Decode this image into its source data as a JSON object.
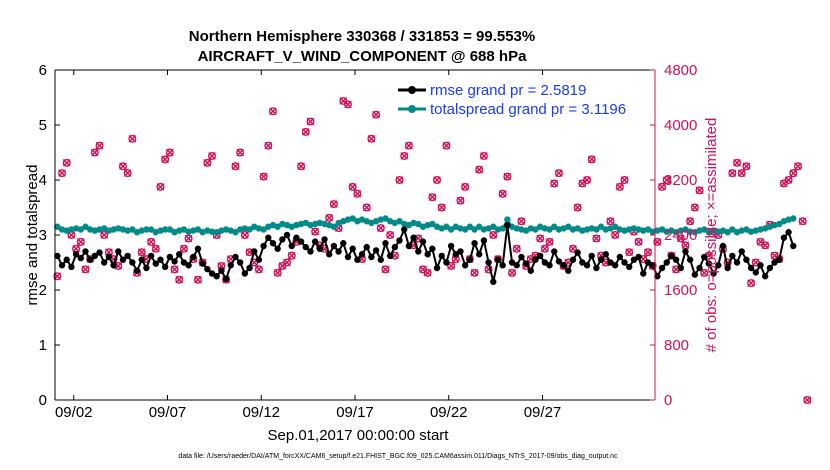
{
  "title_line1": "Northern Hemisphere 330368 / 331853 = 99.553%",
  "title_line2": "AIRCRAFT_V_WIND_COMPONENT @ 688 hPa",
  "footer": "data file: /Users/raeder/DAI/ATM_forcXX/CAM6_setup/f.e21.FHIST_BGC.f09_025.CAM6assim.011/Diags_NTrS_2017-09/obs_diag_output.nc",
  "colors": {
    "rmse": "#000000",
    "spread": "#008a8a",
    "obs": "#d2105a",
    "legend_text": "#1a3cf5"
  },
  "chart_data": {
    "type": "line",
    "xlabel": "Sep.01,2017 00:00:00 start",
    "ylabel_left": "rmse and totalspread",
    "ylabel_right": "# of obs: o=possible; ×=assimilated",
    "xlim": [
      0,
      32
    ],
    "ylim": [
      0,
      6
    ],
    "ylim_right": [
      0,
      4800
    ],
    "x_ticks": [
      1,
      6,
      11,
      16,
      21,
      26
    ],
    "x_tick_labels": [
      "09/02",
      "09/07",
      "09/12",
      "09/17",
      "09/22",
      "09/27"
    ],
    "y_ticks": [
      0,
      1,
      2,
      3,
      4,
      5,
      6
    ],
    "y_tick_labels": [
      "0",
      "1",
      "2",
      "3",
      "4",
      "5",
      "6"
    ],
    "y_right_ticks": [
      0,
      800,
      1600,
      2400,
      3200,
      4000,
      4800
    ],
    "y_right_tick_labels": [
      "0",
      "800",
      "1600",
      "2400",
      "3200",
      "4000",
      "4800"
    ],
    "legend": [
      "rmse grand pr = 2.5819",
      "totalspread grand pr = 3.1196"
    ],
    "time_step_days": 0.25,
    "series": [
      {
        "name": "rmse",
        "axis": "left",
        "values": [
          2.62,
          2.45,
          2.55,
          2.42,
          2.65,
          2.58,
          2.7,
          2.55,
          2.62,
          2.68,
          2.5,
          2.6,
          2.45,
          2.7,
          2.55,
          2.62,
          2.5,
          2.35,
          2.55,
          2.4,
          2.62,
          2.48,
          2.55,
          2.42,
          2.6,
          2.52,
          2.65,
          2.5,
          2.45,
          2.6,
          2.75,
          2.48,
          2.38,
          2.3,
          2.25,
          2.35,
          2.2,
          2.45,
          2.6,
          2.5,
          2.3,
          2.4,
          2.7,
          2.55,
          2.8,
          2.95,
          2.85,
          2.75,
          2.92,
          3.0,
          2.8,
          2.95,
          2.88,
          2.78,
          2.7,
          2.88,
          2.75,
          2.92,
          2.65,
          2.8,
          2.7,
          2.85,
          2.6,
          2.75,
          2.55,
          2.65,
          2.78,
          2.6,
          2.72,
          2.55,
          2.85,
          2.62,
          2.78,
          2.9,
          3.1,
          2.8,
          2.95,
          2.7,
          2.88,
          2.65,
          2.75,
          2.4,
          2.62,
          2.5,
          2.8,
          2.65,
          2.7,
          2.45,
          2.55,
          2.85,
          2.65,
          2.9,
          2.5,
          2.15,
          2.55,
          2.45,
          3.18,
          2.5,
          2.45,
          2.6,
          2.48,
          2.35,
          2.55,
          2.62,
          2.5,
          2.45,
          2.7,
          2.52,
          2.45,
          2.35,
          2.55,
          2.68,
          2.5,
          2.45,
          2.62,
          2.4,
          2.55,
          2.65,
          2.5,
          2.45,
          2.6,
          2.5,
          2.42,
          2.55,
          2.6,
          2.3,
          2.5,
          2.45,
          2.25,
          2.4,
          2.5,
          2.62,
          2.55,
          2.4,
          2.7,
          2.55,
          2.28,
          2.4,
          2.6,
          2.48,
          2.3,
          2.45,
          2.8,
          2.4,
          2.62,
          2.5,
          2.7,
          2.55,
          2.4,
          2.32,
          2.45,
          2.25,
          2.4,
          2.5,
          2.55,
          2.95,
          3.05,
          2.8
        ]
      },
      {
        "name": "totalspread",
        "axis": "left",
        "values": [
          3.15,
          3.1,
          3.08,
          3.1,
          3.12,
          3.1,
          3.15,
          3.1,
          3.08,
          3.1,
          3.12,
          3.08,
          3.1,
          3.12,
          3.1,
          3.08,
          3.1,
          3.05,
          3.08,
          3.1,
          3.1,
          3.05,
          3.08,
          3.1,
          3.1,
          3.05,
          3.08,
          3.1,
          3.06,
          3.08,
          3.1,
          3.05,
          3.08,
          3.06,
          3.05,
          3.08,
          3.1,
          3.08,
          3.05,
          3.1,
          3.12,
          3.1,
          3.15,
          3.12,
          3.1,
          3.15,
          3.18,
          3.15,
          3.2,
          3.18,
          3.15,
          3.18,
          3.2,
          3.22,
          3.18,
          3.2,
          3.22,
          3.2,
          3.18,
          3.15,
          3.22,
          3.25,
          3.28,
          3.3,
          3.25,
          3.28,
          3.25,
          3.22,
          3.25,
          3.28,
          3.3,
          3.25,
          3.22,
          3.25,
          3.2,
          3.18,
          3.22,
          3.2,
          3.15,
          3.18,
          3.2,
          3.15,
          3.12,
          3.15,
          3.1,
          3.15,
          3.12,
          3.1,
          3.15,
          3.1,
          3.15,
          3.1,
          3.12,
          3.15,
          3.1,
          3.12,
          3.28,
          3.15,
          3.12,
          3.1,
          3.08,
          3.12,
          3.1,
          3.15,
          3.12,
          3.1,
          3.15,
          3.1,
          3.12,
          3.15,
          3.1,
          3.12,
          3.08,
          3.1,
          3.12,
          3.1,
          3.15,
          3.1,
          3.12,
          3.15,
          3.1,
          3.08,
          3.1,
          3.12,
          3.1,
          3.08,
          3.1,
          3.06,
          3.08,
          3.1,
          3.06,
          3.08,
          3.05,
          3.08,
          3.1,
          3.06,
          3.05,
          3.08,
          3.1,
          3.05,
          3.08,
          3.06,
          3.08,
          3.05,
          3.1,
          3.05,
          3.08,
          3.1,
          3.06,
          3.08,
          3.1,
          3.12,
          3.15,
          3.18,
          3.2,
          3.25,
          3.28,
          3.3
        ]
      },
      {
        "name": "obs_count",
        "axis": "right",
        "values": [
          1800,
          3300,
          3450,
          2400,
          2200,
          2300,
          1900,
          2050,
          3600,
          3700,
          2400,
          2150,
          2050,
          1950,
          3400,
          3300,
          3800,
          1850,
          2150,
          2050,
          2300,
          2200,
          3100,
          3500,
          3600,
          1900,
          1750,
          2200,
          2350,
          2050,
          1750,
          2000,
          3450,
          3550,
          2400,
          1950,
          1750,
          2050,
          3400,
          3600,
          2400,
          2150,
          2000,
          1900,
          3250,
          3700,
          4200,
          1850,
          1950,
          2000,
          2100,
          2300,
          3400,
          3900,
          4050,
          2450,
          2250,
          2200,
          2650,
          2850,
          2500,
          4350,
          4300,
          3100,
          3000,
          2050,
          2800,
          3800,
          4150,
          2500,
          1900,
          2400,
          2100,
          3200,
          3550,
          3700,
          2250,
          2350,
          1900,
          1850,
          2950,
          3200,
          2800,
          3700,
          1950,
          2050,
          2900,
          3100,
          2050,
          1850,
          3350,
          3550,
          1900,
          2400,
          2050,
          3000,
          3250,
          1850,
          2200,
          2600,
          1950,
          2050,
          2100,
          2350,
          2200,
          2300,
          3150,
          3300,
          1950,
          2000,
          2200,
          2800,
          3150,
          3200,
          3500,
          2350,
          2100,
          2000,
          2600,
          2400,
          3100,
          3200,
          2150,
          2450,
          2300,
          2050,
          2150,
          1950,
          2300,
          3100,
          3200,
          2100,
          1900,
          2350,
          2250,
          2600,
          2800,
          3050,
          1850,
          2100,
          2450,
          2400,
          2200,
          2000,
          3300,
          3450,
          3300,
          3400,
          1700,
          2000,
          2300,
          2250,
          2550,
          2100,
          2050,
          3150,
          3200,
          3300,
          3400,
          2600,
          0
        ]
      }
    ]
  }
}
